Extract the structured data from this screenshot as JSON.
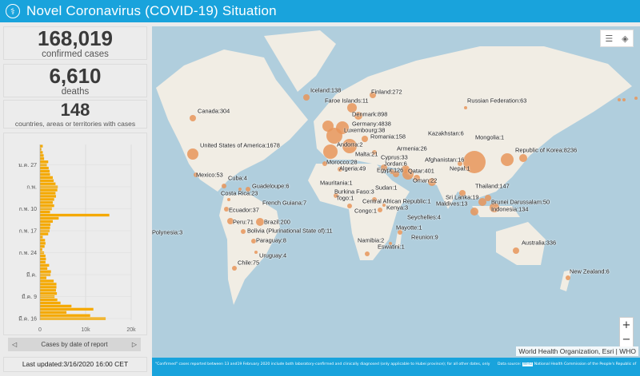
{
  "header": {
    "title": "Novel Coronavirus (COVID-19) Situation",
    "logo_icon": "who-emblem-icon"
  },
  "stats": [
    {
      "value": "168,019",
      "label": "confirmed cases"
    },
    {
      "value": "6,610",
      "label": "deaths"
    },
    {
      "value": "148",
      "label": "countries, areas or territories with cases"
    }
  ],
  "chart_data": {
    "type": "bar",
    "orientation": "horizontal",
    "title": "Cases by date of report",
    "y_tick_labels": [
      "ม.ค. 27",
      "ก.พ.",
      "ก.พ. 10",
      "ก.พ. 17",
      "ก.พ. 24",
      "มี.ค.",
      "มี.ค. 9",
      "มี.ค. 16"
    ],
    "x_tick_labels": [
      "0",
      "10k",
      "20k"
    ],
    "xlim": [
      0,
      20000
    ],
    "bar_color": "#f5a900",
    "values": [
      600,
      300,
      600,
      800,
      900,
      1800,
      1500,
      1900,
      2100,
      2200,
      2800,
      3000,
      3400,
      3900,
      3800,
      3400,
      3500,
      3100,
      2800,
      3100,
      2600,
      2200,
      15200,
      4100,
      2800,
      2300,
      2200,
      2100,
      1800,
      600,
      1100,
      1200,
      1000,
      500,
      900,
      1200,
      1300,
      1200,
      2000,
      1600,
      2400,
      2300,
      1400,
      3000,
      3600,
      3600,
      3500,
      3700,
      3200,
      3800,
      4500,
      6900,
      11700,
      5800,
      11000,
      14400
    ]
  },
  "chart_nav": {
    "prev_icon": "triangle-left-icon",
    "next_icon": "triangle-right-icon"
  },
  "last_updated": "Last updated:3/16/2020 16:00 CET",
  "map": {
    "labels": [
      "Iceland:138",
      "Finland:272",
      "Faroe Islands:11",
      "Canada:304",
      "Russian Federation:63",
      "Denmark:898",
      "Germany:4838",
      "Luxembourg:38",
      "Kazakhstan:6",
      "Mongolia:1",
      "Romania:158",
      "Andorra:2",
      "United States of America:1678",
      "Armenia:26",
      "Republic of Korea:8236",
      "Malta:21",
      "Cyprus:33",
      "Morocco:28",
      "Afghanistan:16",
      "Jordan:6",
      "Algeria:49",
      "Egypt:126",
      "Qatar:401",
      "Nepal:1",
      "Mexico:53",
      "Cuba:4",
      "Oman:22",
      "Mauritania:1",
      "Guadeloupe:6",
      "Thailand:147",
      "Burkina Faso:3",
      "Costa Rica:23",
      "Sudan:1",
      "Sri Lanka:19",
      "Togo:1",
      "Central African Republic:1",
      "Maldives:13",
      "Brunei Darussalam:50",
      "French Guiana:7",
      "Kenya:3",
      "Indonesia:134",
      "Ecuador:37",
      "Congo:1",
      "Seychelles:4",
      "Peru:71",
      "Brazil:200",
      "Mayotte:1",
      "Polynesia:3",
      "Bolivia (Plurinational State of):11",
      "Paraguay:8",
      "Namibia:2",
      "Reunion:9",
      "Eswatini:1",
      "Australia:336",
      "Uruguay:4",
      "Chile:75",
      "New Zealand:6"
    ],
    "bubble_color": "#e8955a",
    "land_color": "#f1ede4",
    "water_color": "#b0cedd",
    "attribution": "World Health Organization, Esri | WHO",
    "legend_icon": "legend-list-icon",
    "layers_icon": "layers-icon",
    "zoom_in": "+",
    "zoom_out": "−"
  },
  "footer": {
    "note": "\"Confirmed\" cases reported between 13 and19 February 2020 include both laboratory-confirmed and clinically diagnosed (only  applicable to Hubei province); for all other dates, only",
    "source_prefix": "Data source:",
    "source_who": "WHO",
    "source_rest": "National Health Commission of the People's Republic of"
  }
}
